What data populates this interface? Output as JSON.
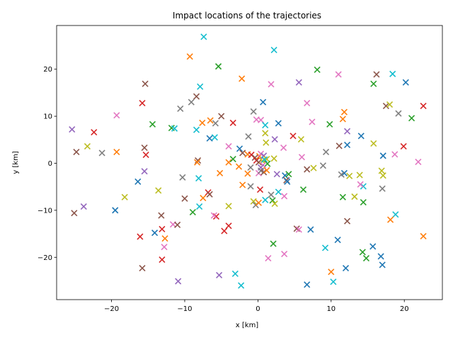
{
  "chart_data": {
    "type": "scatter",
    "title": "Impact locations of the trajectories",
    "xlabel": "x [km]",
    "ylabel": "y [km]",
    "xlim": [
      -27.5,
      25.2
    ],
    "ylim": [
      -29.0,
      29.3
    ],
    "xticks": [
      -20,
      -10,
      0,
      10,
      20
    ],
    "yticks": [
      -20,
      -10,
      0,
      10,
      20
    ],
    "xtick_labels": [
      "−20",
      "−10",
      "0",
      "10",
      "20"
    ],
    "ytick_labels": [
      "−20",
      "−10",
      "0",
      "10",
      "20"
    ],
    "grid": false,
    "marker": "x",
    "palette": [
      "#1f77b4",
      "#ff7f0e",
      "#2ca02c",
      "#d62728",
      "#9467bd",
      "#8c564b",
      "#e377c2",
      "#7f7f7f",
      "#bcbd22",
      "#17becf"
    ],
    "points": [
      {
        "x": -7.4,
        "y": 26.9,
        "c": 9
      },
      {
        "x": 2.2,
        "y": 24.1,
        "c": 9
      },
      {
        "x": -9.3,
        "y": 22.7,
        "c": 1
      },
      {
        "x": -5.4,
        "y": 20.6,
        "c": 2
      },
      {
        "x": 8.1,
        "y": 19.9,
        "c": 2
      },
      {
        "x": 11.0,
        "y": 18.9,
        "c": 6
      },
      {
        "x": 16.2,
        "y": 18.9,
        "c": 5
      },
      {
        "x": 18.4,
        "y": 19.0,
        "c": 9
      },
      {
        "x": -2.2,
        "y": 18.0,
        "c": 1
      },
      {
        "x": -15.4,
        "y": 16.9,
        "c": 5
      },
      {
        "x": -7.9,
        "y": 16.3,
        "c": 9
      },
      {
        "x": 1.8,
        "y": 16.8,
        "c": 6
      },
      {
        "x": 5.6,
        "y": 17.2,
        "c": 4
      },
      {
        "x": 15.8,
        "y": 16.9,
        "c": 2
      },
      {
        "x": 20.2,
        "y": 17.2,
        "c": 0
      },
      {
        "x": -8.4,
        "y": 14.2,
        "c": 5
      },
      {
        "x": -15.8,
        "y": 12.8,
        "c": 3
      },
      {
        "x": -9.1,
        "y": 13.0,
        "c": 7
      },
      {
        "x": 0.7,
        "y": 13.0,
        "c": 0
      },
      {
        "x": 6.7,
        "y": 12.8,
        "c": 6
      },
      {
        "x": 17.5,
        "y": 12.2,
        "c": 5
      },
      {
        "x": 18.0,
        "y": 12.5,
        "c": 8
      },
      {
        "x": 22.6,
        "y": 12.2,
        "c": 3
      },
      {
        "x": -10.6,
        "y": 11.6,
        "c": 7
      },
      {
        "x": -0.6,
        "y": 11.0,
        "c": 7
      },
      {
        "x": 11.8,
        "y": 10.9,
        "c": 1
      },
      {
        "x": 19.2,
        "y": 10.6,
        "c": 7
      },
      {
        "x": -19.3,
        "y": 10.2,
        "c": 6
      },
      {
        "x": -5.0,
        "y": 10.0,
        "c": 5
      },
      {
        "x": 11.6,
        "y": 9.4,
        "c": 1
      },
      {
        "x": 21.0,
        "y": 9.6,
        "c": 2
      },
      {
        "x": -6.5,
        "y": 9.1,
        "c": 1
      },
      {
        "x": -5.8,
        "y": 8.5,
        "c": 7
      },
      {
        "x": -0.2,
        "y": 9.3,
        "c": 6
      },
      {
        "x": 0.4,
        "y": 9.2,
        "c": 6
      },
      {
        "x": 1.0,
        "y": 8.1,
        "c": 9
      },
      {
        "x": 2.8,
        "y": 8.5,
        "c": 0
      },
      {
        "x": 7.4,
        "y": 8.8,
        "c": 6
      },
      {
        "x": 9.8,
        "y": 8.3,
        "c": 2
      },
      {
        "x": -14.4,
        "y": 8.3,
        "c": 2
      },
      {
        "x": -7.6,
        "y": 8.6,
        "c": 1
      },
      {
        "x": -11.8,
        "y": 7.5,
        "c": 2
      },
      {
        "x": -11.4,
        "y": 7.4,
        "c": 9
      },
      {
        "x": -3.4,
        "y": 8.6,
        "c": 3
      },
      {
        "x": -8.4,
        "y": 7.1,
        "c": 9
      },
      {
        "x": -22.4,
        "y": 6.6,
        "c": 3
      },
      {
        "x": 12.2,
        "y": 6.8,
        "c": 4
      },
      {
        "x": 1.0,
        "y": 6.4,
        "c": 8
      },
      {
        "x": -25.4,
        "y": 7.2,
        "c": 4
      },
      {
        "x": -6.6,
        "y": 5.3,
        "c": 0
      },
      {
        "x": -5.9,
        "y": 5.5,
        "c": 9
      },
      {
        "x": -1.3,
        "y": 5.7,
        "c": 7
      },
      {
        "x": 2.3,
        "y": 5.1,
        "c": 4
      },
      {
        "x": 4.8,
        "y": 5.8,
        "c": 3
      },
      {
        "x": 5.9,
        "y": 5.1,
        "c": 8
      },
      {
        "x": 14.1,
        "y": 5.8,
        "c": 0
      },
      {
        "x": 15.8,
        "y": 4.2,
        "c": 8
      },
      {
        "x": 1.1,
        "y": 4.4,
        "c": 8
      },
      {
        "x": -23.3,
        "y": 3.6,
        "c": 8
      },
      {
        "x": -15.5,
        "y": 3.3,
        "c": 5
      },
      {
        "x": -4.0,
        "y": 3.6,
        "c": 6
      },
      {
        "x": -2.5,
        "y": 3.1,
        "c": 0
      },
      {
        "x": 3.5,
        "y": 3.3,
        "c": 6
      },
      {
        "x": 11.1,
        "y": 3.7,
        "c": 5
      },
      {
        "x": 12.2,
        "y": 3.9,
        "c": 0
      },
      {
        "x": 19.9,
        "y": 3.6,
        "c": 3
      },
      {
        "x": -24.8,
        "y": 2.4,
        "c": 5
      },
      {
        "x": -21.3,
        "y": 2.2,
        "c": 7
      },
      {
        "x": -19.3,
        "y": 2.4,
        "c": 1
      },
      {
        "x": -15.3,
        "y": 1.8,
        "c": 3
      },
      {
        "x": -2.1,
        "y": 2.2,
        "c": 5
      },
      {
        "x": -1.4,
        "y": 1.9,
        "c": 1
      },
      {
        "x": -0.9,
        "y": 1.8,
        "c": 3
      },
      {
        "x": -0.4,
        "y": 1.2,
        "c": 5
      },
      {
        "x": 0.2,
        "y": 1.5,
        "c": 1
      },
      {
        "x": 0.4,
        "y": 2.0,
        "c": 6
      },
      {
        "x": 0.8,
        "y": 1.6,
        "c": 4
      },
      {
        "x": 1.2,
        "y": 0.9,
        "c": 8
      },
      {
        "x": 2.2,
        "y": 1.0,
        "c": 8
      },
      {
        "x": 6.0,
        "y": 1.3,
        "c": 6
      },
      {
        "x": 9.3,
        "y": 2.4,
        "c": 7
      },
      {
        "x": 17.1,
        "y": 1.6,
        "c": 0
      },
      {
        "x": 18.7,
        "y": 1.9,
        "c": 6
      },
      {
        "x": 21.9,
        "y": 0.3,
        "c": 6
      },
      {
        "x": -8.2,
        "y": 0.6,
        "c": 5
      },
      {
        "x": -8.3,
        "y": 0.2,
        "c": 1
      },
      {
        "x": -4.0,
        "y": 0.2,
        "c": 1
      },
      {
        "x": -3.4,
        "y": 0.9,
        "c": 2
      },
      {
        "x": -2.6,
        "y": -0.7,
        "c": 1
      },
      {
        "x": -1.0,
        "y": -0.9,
        "c": 7
      },
      {
        "x": -0.2,
        "y": 0.6,
        "c": 3
      },
      {
        "x": 0.1,
        "y": 0.2,
        "c": 5
      },
      {
        "x": 0.6,
        "y": 0.5,
        "c": 8
      },
      {
        "x": 0.9,
        "y": 0.8,
        "c": 9
      },
      {
        "x": 1.3,
        "y": -0.1,
        "c": 2
      },
      {
        "x": 0.7,
        "y": -0.4,
        "c": 6
      },
      {
        "x": 0.4,
        "y": -0.9,
        "c": 4
      },
      {
        "x": 0.1,
        "y": -2.1,
        "c": 6
      },
      {
        "x": 0.4,
        "y": -1.6,
        "c": 7
      },
      {
        "x": 0.8,
        "y": -1.9,
        "c": 5
      },
      {
        "x": 1.2,
        "y": -1.5,
        "c": 1
      },
      {
        "x": 2.6,
        "y": -2.3,
        "c": 4
      },
      {
        "x": 3.7,
        "y": -2.6,
        "c": 0
      },
      {
        "x": 3.9,
        "y": -3.6,
        "c": 5
      },
      {
        "x": 4.2,
        "y": -2.3,
        "c": 2
      },
      {
        "x": 6.7,
        "y": -1.3,
        "c": 5
      },
      {
        "x": 7.6,
        "y": -1.0,
        "c": 8
      },
      {
        "x": 8.9,
        "y": -0.5,
        "c": 7
      },
      {
        "x": 11.8,
        "y": -2.1,
        "c": 0
      },
      {
        "x": 11.4,
        "y": -2.4,
        "c": 7
      },
      {
        "x": 12.5,
        "y": -2.7,
        "c": 8
      },
      {
        "x": 13.9,
        "y": -2.5,
        "c": 8
      },
      {
        "x": 16.9,
        "y": -1.6,
        "c": 8
      },
      {
        "x": 17.1,
        "y": -2.6,
        "c": 8
      },
      {
        "x": -15.5,
        "y": -1.7,
        "c": 4
      },
      {
        "x": -10.3,
        "y": -3.0,
        "c": 7
      },
      {
        "x": -8.1,
        "y": -3.2,
        "c": 9
      },
      {
        "x": -5.2,
        "y": -2.1,
        "c": 1
      },
      {
        "x": -1.4,
        "y": -2.2,
        "c": 1
      },
      {
        "x": -2.1,
        "y": -4.6,
        "c": 1
      },
      {
        "x": -1.0,
        "y": -4.9,
        "c": 7
      },
      {
        "x": 4.0,
        "y": -3.9,
        "c": 0
      },
      {
        "x": 14.4,
        "y": -4.9,
        "c": 9
      },
      {
        "x": 14.0,
        "y": -4.5,
        "c": 6
      },
      {
        "x": -16.4,
        "y": -3.9,
        "c": 0
      },
      {
        "x": -13.6,
        "y": -5.8,
        "c": 8
      },
      {
        "x": -10.0,
        "y": -7.5,
        "c": 5
      },
      {
        "x": -18.2,
        "y": -7.2,
        "c": 8
      },
      {
        "x": -6.8,
        "y": -6.2,
        "c": 3
      },
      {
        "x": -6.6,
        "y": -6.6,
        "c": 5
      },
      {
        "x": -7.5,
        "y": -7.4,
        "c": 1
      },
      {
        "x": 0.3,
        "y": -5.6,
        "c": 3
      },
      {
        "x": 1.8,
        "y": -6.7,
        "c": 7
      },
      {
        "x": 2.8,
        "y": -6.1,
        "c": 9
      },
      {
        "x": 3.6,
        "y": -7.0,
        "c": 6
      },
      {
        "x": 6.2,
        "y": -5.6,
        "c": 2
      },
      {
        "x": 11.6,
        "y": -7.2,
        "c": 2
      },
      {
        "x": 13.2,
        "y": -7.1,
        "c": 8
      },
      {
        "x": 17.0,
        "y": -5.4,
        "c": 7
      },
      {
        "x": -23.8,
        "y": -9.2,
        "c": 4
      },
      {
        "x": -25.1,
        "y": -10.6,
        "c": 5
      },
      {
        "x": -19.5,
        "y": -10.0,
        "c": 0
      },
      {
        "x": -8.9,
        "y": -10.4,
        "c": 2
      },
      {
        "x": -8.0,
        "y": -9.2,
        "c": 9
      },
      {
        "x": -4.0,
        "y": -9.1,
        "c": 8
      },
      {
        "x": -0.6,
        "y": -8.1,
        "c": 8
      },
      {
        "x": -0.3,
        "y": -8.9,
        "c": 7
      },
      {
        "x": 0.1,
        "y": -8.4,
        "c": 1
      },
      {
        "x": 1.0,
        "y": -7.8,
        "c": 9
      },
      {
        "x": 2.0,
        "y": -7.9,
        "c": 2
      },
      {
        "x": 2.3,
        "y": -8.6,
        "c": 8
      },
      {
        "x": 14.4,
        "y": -8.3,
        "c": 2
      },
      {
        "x": 18.8,
        "y": -10.9,
        "c": 9
      },
      {
        "x": -13.2,
        "y": -11.1,
        "c": 5
      },
      {
        "x": -11.6,
        "y": -13.0,
        "c": 6
      },
      {
        "x": -11.0,
        "y": -13.1,
        "c": 5
      },
      {
        "x": -5.7,
        "y": -11.3,
        "c": 3
      },
      {
        "x": -6.0,
        "y": -11.1,
        "c": 6
      },
      {
        "x": -4.0,
        "y": -13.3,
        "c": 3
      },
      {
        "x": -4.6,
        "y": -14.4,
        "c": 3
      },
      {
        "x": -13.1,
        "y": -14.0,
        "c": 3
      },
      {
        "x": -14.1,
        "y": -14.8,
        "c": 0
      },
      {
        "x": 5.3,
        "y": -13.9,
        "c": 5
      },
      {
        "x": 5.6,
        "y": -14.1,
        "c": 6
      },
      {
        "x": 7.2,
        "y": -14.1,
        "c": 0
      },
      {
        "x": 12.2,
        "y": -12.3,
        "c": 5
      },
      {
        "x": 18.1,
        "y": -12.0,
        "c": 1
      },
      {
        "x": -16.1,
        "y": -15.6,
        "c": 3
      },
      {
        "x": -12.7,
        "y": -16.0,
        "c": 1
      },
      {
        "x": -12.8,
        "y": -17.8,
        "c": 6
      },
      {
        "x": 2.1,
        "y": -17.1,
        "c": 2
      },
      {
        "x": 10.9,
        "y": -16.3,
        "c": 0
      },
      {
        "x": 9.2,
        "y": -18.0,
        "c": 9
      },
      {
        "x": 14.3,
        "y": -18.9,
        "c": 2
      },
      {
        "x": 15.7,
        "y": -17.7,
        "c": 0
      },
      {
        "x": 22.6,
        "y": -15.5,
        "c": 1
      },
      {
        "x": -15.8,
        "y": -22.3,
        "c": 5
      },
      {
        "x": -13.1,
        "y": -20.5,
        "c": 3
      },
      {
        "x": 1.4,
        "y": -20.2,
        "c": 6
      },
      {
        "x": 3.6,
        "y": -19.3,
        "c": 6
      },
      {
        "x": 12.0,
        "y": -22.3,
        "c": 0
      },
      {
        "x": 14.8,
        "y": -20.2,
        "c": 2
      },
      {
        "x": 16.8,
        "y": -19.8,
        "c": 0
      },
      {
        "x": 17.0,
        "y": -21.6,
        "c": 0
      },
      {
        "x": 10.0,
        "y": -23.1,
        "c": 1
      },
      {
        "x": -10.9,
        "y": -25.1,
        "c": 4
      },
      {
        "x": -5.3,
        "y": -23.8,
        "c": 4
      },
      {
        "x": -3.1,
        "y": -23.5,
        "c": 9
      },
      {
        "x": -2.3,
        "y": -26.0,
        "c": 9
      },
      {
        "x": 6.7,
        "y": -25.8,
        "c": 0
      },
      {
        "x": 10.3,
        "y": -25.2,
        "c": 9
      }
    ]
  }
}
